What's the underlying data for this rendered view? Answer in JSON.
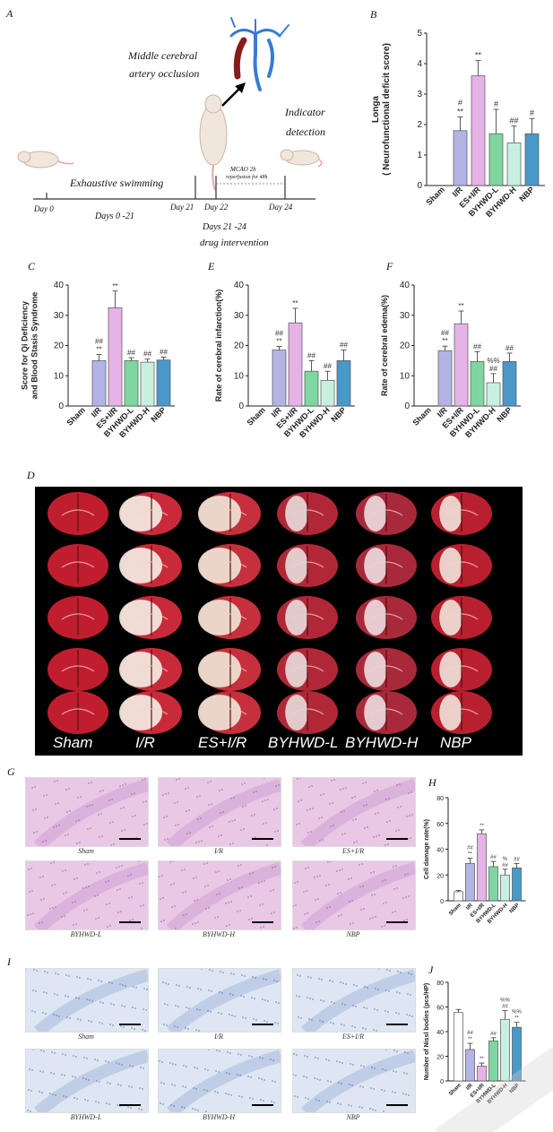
{
  "panels": {
    "A": "A",
    "B": "B",
    "C": "C",
    "D": "D",
    "E": "E",
    "F": "F",
    "G": "G",
    "H": "H",
    "I": "I",
    "J": "J"
  },
  "panel_a": {
    "mcao_line1": "Middle cerebral",
    "mcao_line2": "artery occlusion",
    "indicator_line1": "Indicator",
    "indicator_line2": "detection",
    "mcao_note_line1": "MCAO 2h",
    "mcao_note_line2": "reperfusion for 48h",
    "exhaustive": "Exhaustive swimming",
    "day0": "Day 0",
    "day21": "Day 21",
    "day22": "Day 22",
    "day24": "Day 24",
    "days0_21": "Days 0 -21",
    "days21_24": "Days 21 -24",
    "drug": "drug intervention"
  },
  "groups_d": [
    "Sham",
    "I/R",
    "ES+I/R",
    "BYHWD-L",
    "BYHWD-H",
    "NBP"
  ],
  "panel_g": {
    "captions": [
      "Sham",
      "I/R",
      "ES+I/R",
      "BYHWD-L",
      "BYHWD-H",
      "NBP"
    ]
  },
  "panel_i": {
    "captions": [
      "Sham",
      "I/R",
      "ES+I/R",
      "BYHWD-L",
      "BYHWD-H",
      "NBP"
    ]
  },
  "colors": {
    "sham": "#ffffff",
    "ir": "#b3b3e6",
    "es_ir": "#e6b3e6",
    "byhwd_l": "#7fd6a0",
    "byhwd_h": "#c7f0e0",
    "nbp": "#4a98c8"
  },
  "chart_data": [
    {
      "id": "B",
      "type": "bar",
      "ylabel": "Longa\n( Neurofunctional deficit score)",
      "categories": [
        "Sham",
        "I/R",
        "ES+I/R",
        "BYHWD-L",
        "BYHWD-H",
        "NBP"
      ],
      "values": [
        0,
        1.8,
        3.6,
        1.7,
        1.4,
        1.7
      ],
      "errors": [
        0,
        0.45,
        0.5,
        0.8,
        0.55,
        0.5
      ],
      "annotations": [
        "",
        "#\n**",
        "**",
        "#",
        "##",
        "#"
      ],
      "ylim": [
        0,
        5
      ],
      "yticks": [
        0,
        1,
        2,
        3,
        4,
        5
      ]
    },
    {
      "id": "C",
      "type": "bar",
      "ylabel": "Score for Qi Deficiency\nand Blood Stasis Syndrome",
      "categories": [
        "Sham",
        "I/R",
        "ES+I/R",
        "BYHWD-L",
        "BYHWD-H",
        "NBP"
      ],
      "values": [
        0,
        15,
        32.5,
        15,
        14.5,
        15.2
      ],
      "errors": [
        0,
        2,
        5.5,
        1,
        1,
        1
      ],
      "annotations": [
        "",
        "##\n**",
        "**",
        "##",
        "##",
        "##"
      ],
      "ylim": [
        0,
        40
      ],
      "yticks": [
        0,
        10,
        20,
        30,
        40
      ]
    },
    {
      "id": "E",
      "type": "bar",
      "ylabel": "Rate of cerebral infarction(%)",
      "categories": [
        "Sham",
        "I/R",
        "ES+I/R",
        "BYHWD-L",
        "BYHWD-H",
        "NBP"
      ],
      "values": [
        0,
        18.5,
        27.5,
        11.5,
        8.5,
        15
      ],
      "errors": [
        0,
        1.2,
        4.8,
        3.5,
        3,
        3.5
      ],
      "annotations": [
        "",
        "##\n**",
        "**",
        "##",
        "##",
        "##"
      ],
      "ylim": [
        0,
        40
      ],
      "yticks": [
        0,
        10,
        20,
        30,
        40
      ]
    },
    {
      "id": "F",
      "type": "bar",
      "ylabel": "Rate of cerebral edema(%)",
      "categories": [
        "Sham",
        "I/R",
        "ES+I/R",
        "BYHWD-L",
        "BYHWD-H",
        "NBP"
      ],
      "values": [
        0,
        18.3,
        27.2,
        14.7,
        7.7,
        14.7
      ],
      "errors": [
        0,
        1.5,
        4.2,
        3.3,
        3,
        2.8
      ],
      "annotations": [
        "",
        "##\n**",
        "**",
        "##",
        "%%\n##",
        "##"
      ],
      "ylim": [
        0,
        40
      ],
      "yticks": [
        0,
        10,
        20,
        30,
        40
      ]
    },
    {
      "id": "H",
      "type": "bar",
      "ylabel": "Cell damage rate(%)",
      "categories": [
        "Sham",
        "I/R",
        "ES+I/R",
        "BYHWD-L",
        "BYHWD-H",
        "NBP"
      ],
      "values": [
        7,
        29,
        52,
        26.5,
        20,
        25.5
      ],
      "errors": [
        1,
        4,
        3,
        4,
        4.5,
        3.5
      ],
      "annotations": [
        "",
        "##\n**",
        "**",
        "##",
        "%\n##",
        "##"
      ],
      "ylim": [
        0,
        80
      ],
      "yticks": [
        0,
        20,
        40,
        60,
        80
      ]
    },
    {
      "id": "J",
      "type": "bar",
      "ylabel": "Number of Nissl bodies (pcs/HP)",
      "categories": [
        "Sham",
        "I/R",
        "ES+I/R",
        "BYHWD-L",
        "BYHWD-H",
        "NBP"
      ],
      "values": [
        55.5,
        25.5,
        12,
        32.5,
        50,
        43.5
      ],
      "errors": [
        2.5,
        5,
        2.5,
        2.5,
        7,
        4
      ],
      "annotations": [
        "",
        "##\n**",
        "**",
        "##",
        "%%\n##",
        "%%\n**"
      ],
      "ylim": [
        0,
        80
      ],
      "yticks": [
        0,
        20,
        40,
        60,
        80
      ]
    }
  ]
}
